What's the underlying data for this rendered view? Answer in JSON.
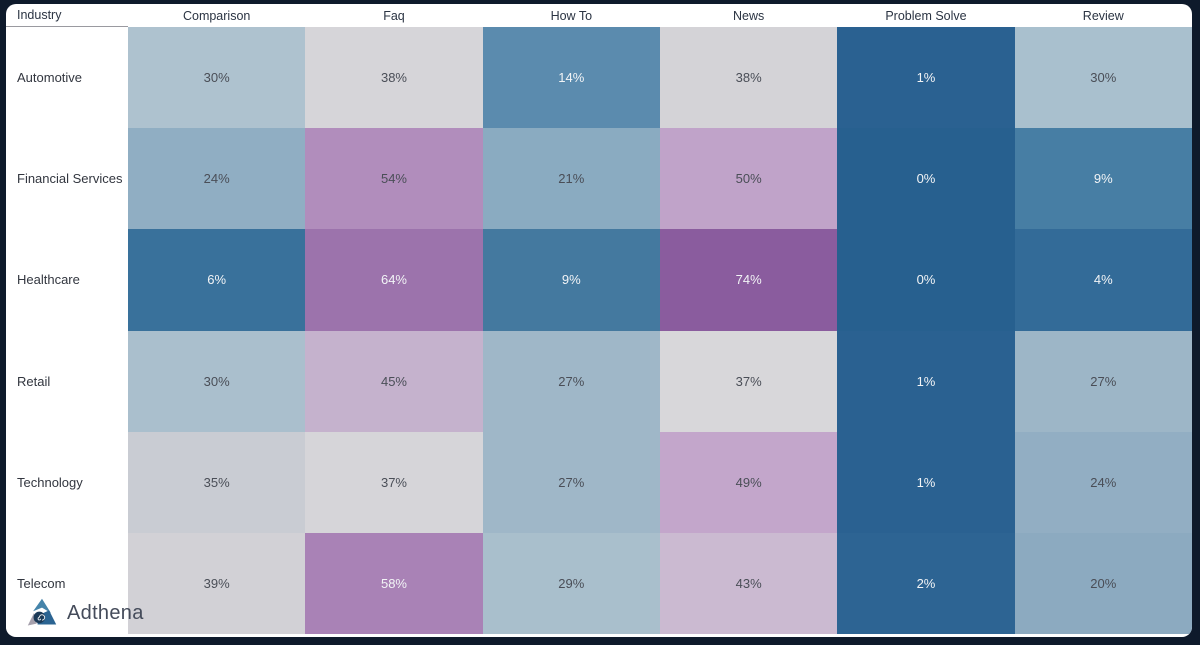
{
  "frame": {
    "background": "#0e1a2b",
    "card_background": "#ffffff"
  },
  "logo": {
    "text": "Adthena",
    "icon": "adthena-triangle-icon",
    "icon_colors": {
      "top": "#4584aa",
      "left": "#a6a1ad",
      "right": "#2b6492",
      "swirl": "#1b3a57"
    }
  },
  "chart_data": {
    "type": "heatmap",
    "title": "",
    "row_header_label": "Industry",
    "columns": [
      "Comparison",
      "Faq",
      "How To",
      "News",
      "Problem Solve",
      "Review"
    ],
    "rows": [
      "Automotive",
      "Financial Services",
      "Healthcare",
      "Retail",
      "Technology",
      "Telecom"
    ],
    "values": [
      [
        30,
        38,
        14,
        38,
        1,
        30
      ],
      [
        24,
        54,
        21,
        50,
        0,
        9
      ],
      [
        6,
        64,
        9,
        74,
        0,
        4
      ],
      [
        30,
        45,
        27,
        37,
        1,
        27
      ],
      [
        35,
        37,
        27,
        49,
        1,
        24
      ],
      [
        39,
        58,
        29,
        43,
        2,
        20
      ]
    ],
    "unit": "%",
    "cell_colors": [
      [
        "#aec2cf",
        "#d6d5d9",
        "#5b8bae",
        "#d4d3d7",
        "#2a6191",
        "#a9c0ce"
      ],
      [
        "#90aec3",
        "#b18dbc",
        "#8aabc1",
        "#c0a3c9",
        "#27608f",
        "#477ea4"
      ],
      [
        "#39719b",
        "#9c73ac",
        "#44799f",
        "#8a5c9e",
        "#27608f",
        "#336b98"
      ],
      [
        "#aabfcd",
        "#c5b2cd",
        "#9fb7c8",
        "#d8d7da",
        "#2a6191",
        "#9db6c7"
      ],
      [
        "#c9ccd3",
        "#d6d5d9",
        "#9fb7c8",
        "#c3a6cb",
        "#2a6191",
        "#92aec3"
      ],
      [
        "#d2d1d6",
        "#a982b6",
        "#a9bfcc",
        "#cbbad1",
        "#2d6493",
        "#8caac0"
      ]
    ],
    "palette": {
      "low": "#27608f",
      "mid": "#d6d5d9",
      "high": "#8a5c9e"
    },
    "text_colors": {
      "dark": "#4a4e57",
      "light": "#f2f4f6"
    },
    "legend_position": "none",
    "grid": false
  }
}
